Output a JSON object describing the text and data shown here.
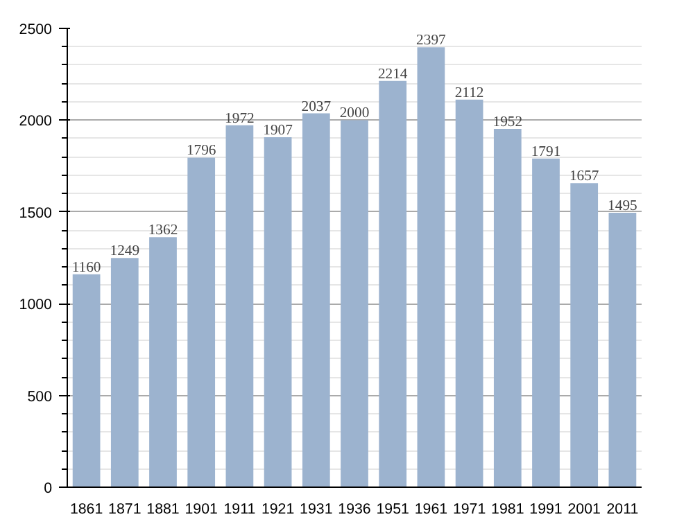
{
  "chart_data": {
    "type": "bar",
    "categories": [
      "1861",
      "1871",
      "1881",
      "1901",
      "1911",
      "1921",
      "1931",
      "1936",
      "1951",
      "1961",
      "1971",
      "1981",
      "1991",
      "2001",
      "2011"
    ],
    "values": [
      1160,
      1249,
      1362,
      1796,
      1972,
      1907,
      2037,
      2000,
      2214,
      2397,
      2112,
      1952,
      1791,
      1657,
      1495
    ],
    "color": "#9cb3cf",
    "ylim": [
      0,
      2500
    ],
    "yticks": [
      0,
      500,
      1000,
      1500,
      2000,
      2500
    ],
    "grid": "y",
    "data_labels": true
  }
}
